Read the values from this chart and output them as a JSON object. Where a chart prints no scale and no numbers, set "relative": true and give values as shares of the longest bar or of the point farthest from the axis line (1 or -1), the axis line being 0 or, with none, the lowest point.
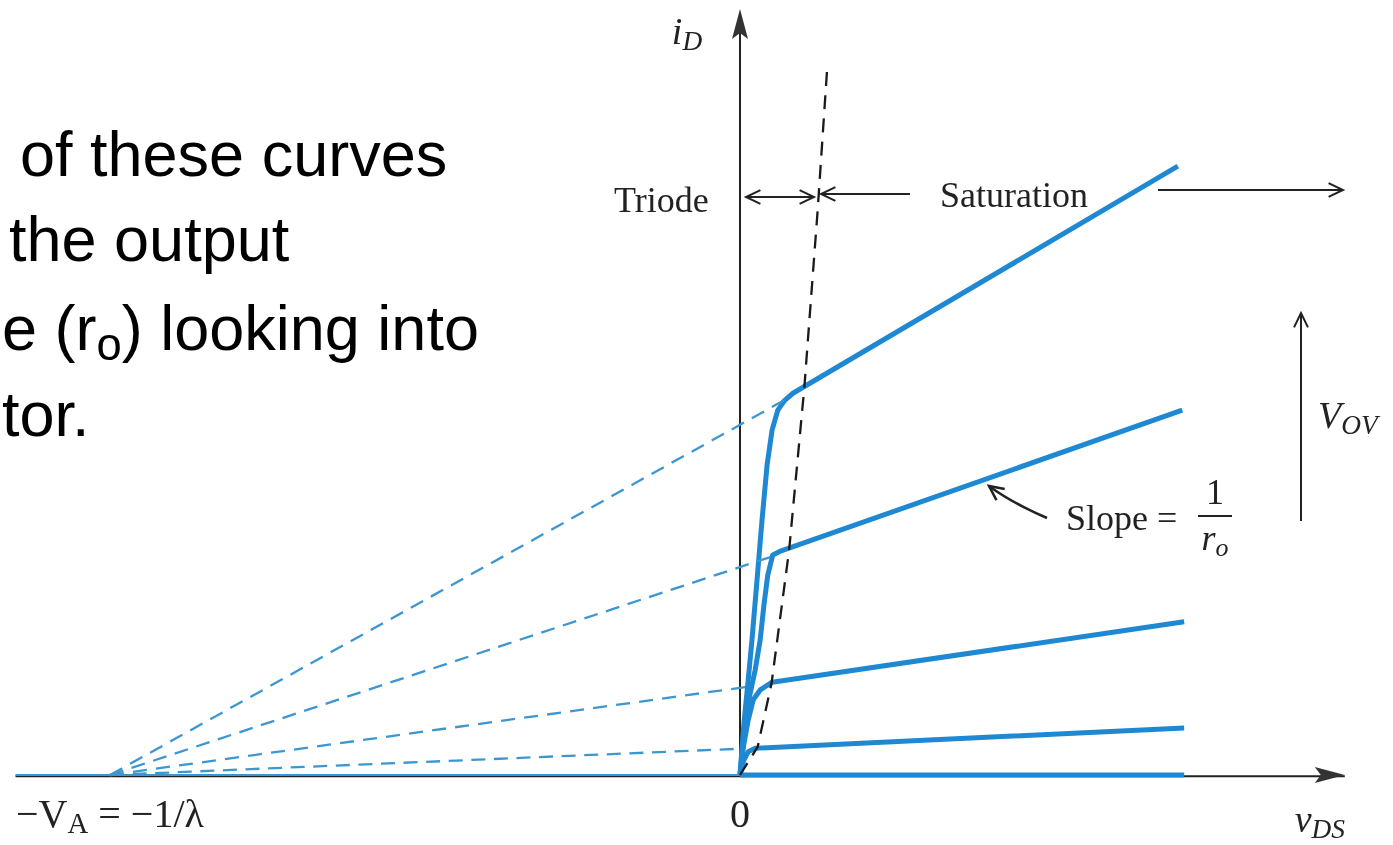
{
  "chart_data": {
    "type": "line",
    "relative": true,
    "xlabel": "v$_{DS}$",
    "ylabel": "i$_{D}$",
    "xlim": [
      -1.15,
      0.96
    ],
    "xticks": [
      {
        "value": -1,
        "label": "−V$_{A}$ = −1/λ"
      },
      0
    ],
    "annotations": [
      "of these curves",
      "the output",
      "e (r$_{o}$) looking into",
      "tor.",
      "Triode",
      "Saturation",
      "V$_{OV}$",
      "Slope =",
      "1",
      "r$_{o}$"
    ],
    "series": [
      {
        "color": "#1e88d2",
        "line_style": "solid",
        "x": [
          0,
          0.006,
          0.013,
          0.019,
          0.027,
          0.035,
          0.043,
          0.051,
          0.06,
          0.071,
          0.084,
          0.695
        ],
        "values": [
          0,
          0.071,
          0.135,
          0.192,
          0.277,
          0.363,
          0.441,
          0.491,
          0.519,
          0.533,
          0.543,
          0.866
        ]
      },
      {
        "color": "#1e88d2",
        "line_style": "solid",
        "x": [
          0,
          0.006,
          0.014,
          0.024,
          0.032,
          0.038,
          0.044,
          0.052,
          0.063,
          0.702
        ],
        "values": [
          0,
          0.057,
          0.107,
          0.149,
          0.192,
          0.242,
          0.284,
          0.313,
          0.318,
          0.519
        ]
      },
      {
        "color": "#1e88d2",
        "line_style": "solid",
        "x": [
          0,
          0.006,
          0.013,
          0.021,
          0.032,
          0.051,
          0.705
        ],
        "values": [
          0,
          0.043,
          0.078,
          0.107,
          0.121,
          0.132,
          0.218
        ]
      },
      {
        "color": "#1e88d2",
        "line_style": "solid",
        "x": [
          0,
          0.006,
          0.013,
          0.024,
          0.705
        ],
        "values": [
          0,
          0.021,
          0.033,
          0.038,
          0.067
        ]
      },
      {
        "color": "#1e88d2",
        "line_style": "solid",
        "x": [
          0,
          0.705
        ],
        "values": [
          0,
          0
        ]
      },
      {
        "color": "#3c96d2",
        "line_style": "solid",
        "x": [
          -1.15,
          0
        ],
        "values": [
          0,
          0
        ]
      },
      {
        "color": "#3c96d2",
        "line_style": "dashed",
        "x": [
          -1,
          0.07
        ],
        "values": [
          0,
          0.533
        ]
      },
      {
        "color": "#3c96d2",
        "line_style": "dashed",
        "x": [
          -1,
          0.048
        ],
        "values": [
          0,
          0.31
        ]
      },
      {
        "color": "#3c96d2",
        "line_style": "dashed",
        "x": [
          -1,
          0.008
        ],
        "values": [
          0,
          0.125
        ]
      },
      {
        "color": "#3c96d2",
        "line_style": "dashed",
        "x": [
          -1,
          -0.01
        ],
        "values": [
          0,
          0.037
        ]
      },
      {
        "color": "#1a1a1a",
        "line_style": "dashed",
        "x": [
          0,
          0.028,
          0.05,
          0.078,
          0.102,
          0.123,
          0.138
        ],
        "values": [
          0,
          0.04,
          0.13,
          0.32,
          0.55,
          0.8,
          1
        ]
      }
    ]
  }
}
